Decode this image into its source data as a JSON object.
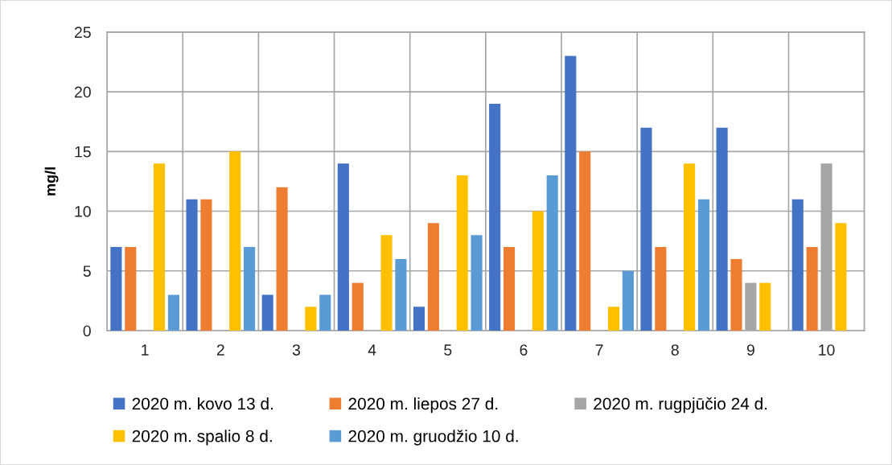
{
  "chart_data": {
    "type": "bar",
    "ylabel": "mg/l",
    "categories": [
      "1",
      "2",
      "3",
      "4",
      "5",
      "6",
      "7",
      "8",
      "9",
      "10"
    ],
    "series": [
      {
        "name": "2020 m. kovo 13 d.",
        "color": "#4472c4",
        "values": [
          7,
          11,
          3,
          14,
          2,
          19,
          23,
          17,
          17,
          11
        ]
      },
      {
        "name": "2020 m. liepos 27 d.",
        "color": "#ed7d31",
        "values": [
          7,
          11,
          12,
          4,
          9,
          7,
          15,
          7,
          6,
          7
        ]
      },
      {
        "name": "2020 m. rugpjūčio 24 d.",
        "color": "#a5a5a5",
        "values": [
          null,
          null,
          null,
          null,
          null,
          null,
          null,
          null,
          4,
          14
        ]
      },
      {
        "name": "2020 m. spalio 8 d.",
        "color": "#ffc000",
        "values": [
          14,
          15,
          2,
          8,
          13,
          10,
          2,
          14,
          4,
          9
        ]
      },
      {
        "name": "2020 m. gruodžio 10 d.",
        "color": "#5b9bd5",
        "values": [
          3,
          7,
          3,
          6,
          8,
          13,
          5,
          11,
          null,
          null
        ]
      }
    ],
    "ylim": [
      0,
      25
    ],
    "yticks": [
      0,
      5,
      10,
      15,
      20,
      25
    ],
    "grid": true,
    "legend": "bottom"
  }
}
